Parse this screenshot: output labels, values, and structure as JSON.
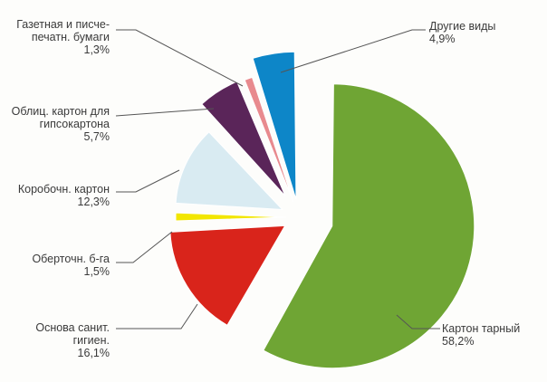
{
  "chart_data": {
    "type": "pie",
    "title": "",
    "slices": [
      {
        "label": "Картон тарный",
        "value": 58.2,
        "value_label": "58,2%",
        "color": "#6fa534"
      },
      {
        "label": "Основа санит.\nгигиен.",
        "value": 16.1,
        "value_label": "16,1%",
        "color": "#d9241b"
      },
      {
        "label": "Оберточн. б-га",
        "value": 1.5,
        "value_label": "1,5%",
        "color": "#f2e600"
      },
      {
        "label": "Коробочн. картон",
        "value": 12.3,
        "value_label": "12,3%",
        "color": "#d9ebf2"
      },
      {
        "label": "Облиц. картон для\nгипсокартона",
        "value": 5.7,
        "value_label": "5,7%",
        "color": "#5a2559"
      },
      {
        "label": "Газетная и писче-\nпечатн. бумаги",
        "value": 1.3,
        "value_label": "1,3%",
        "color": "#e88a8e"
      },
      {
        "label": "Другие виды",
        "value": 4.9,
        "value_label": "4,9%",
        "color": "#0d86c8"
      }
    ],
    "legend": "none",
    "labels_placement": "callouts-around-pie"
  }
}
